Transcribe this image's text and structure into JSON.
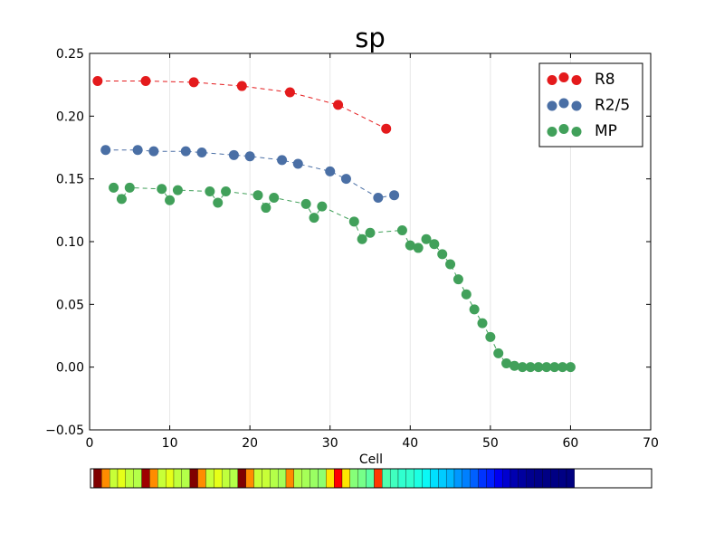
{
  "chart_data": {
    "type": "scatter",
    "title": "sp",
    "xlabel": "Cell",
    "ylabel": "",
    "xlim": [
      0,
      70
    ],
    "ylim": [
      -0.05,
      0.25
    ],
    "x_ticks": [
      "0",
      "10",
      "20",
      "30",
      "40",
      "50",
      "60",
      "70"
    ],
    "y_ticks": [
      "−0.05",
      "0.00",
      "0.05",
      "0.10",
      "0.15",
      "0.20",
      "0.25"
    ],
    "grid": "vertical",
    "legend_position": "top-right",
    "series": [
      {
        "name": "R8",
        "color": "#e41a1c",
        "x": [
          1,
          7,
          13,
          19,
          25,
          31,
          37
        ],
        "y": [
          0.228,
          0.228,
          0.227,
          0.224,
          0.219,
          0.209,
          0.19
        ]
      },
      {
        "name": "R2/5",
        "color": "#4a6fa5",
        "x": [
          2,
          6,
          8,
          12,
          14,
          18,
          20,
          24,
          26,
          30,
          32,
          36,
          38
        ],
        "y": [
          0.173,
          0.173,
          0.172,
          0.172,
          0.171,
          0.169,
          0.168,
          0.165,
          0.162,
          0.156,
          0.15,
          0.135,
          0.137
        ]
      },
      {
        "name": "MP",
        "color": "#41a05a",
        "x": [
          3,
          4,
          5,
          9,
          10,
          11,
          15,
          16,
          17,
          21,
          22,
          23,
          27,
          28,
          29,
          33,
          34,
          35,
          39,
          40,
          41,
          42,
          43,
          44,
          45,
          46,
          47,
          48,
          49,
          50,
          51,
          52,
          53,
          54,
          55,
          56,
          57,
          58,
          59,
          60
        ],
        "y": [
          0.143,
          0.134,
          0.143,
          0.142,
          0.133,
          0.141,
          0.14,
          0.131,
          0.14,
          0.137,
          0.127,
          0.135,
          0.13,
          0.119,
          0.128,
          0.116,
          0.102,
          0.107,
          0.109,
          0.097,
          0.095,
          0.102,
          0.098,
          0.09,
          0.082,
          0.07,
          0.058,
          0.046,
          0.035,
          0.024,
          0.011,
          0.003,
          0.001,
          0.0,
          0.0,
          0.0,
          0.0,
          0.0,
          0.0,
          0.0
        ]
      }
    ],
    "colorbar": {
      "cells": 60,
      "colors": [
        "#800000",
        "#ff8c00",
        "#c8ff37",
        "#e6ff18",
        "#c0ff3d",
        "#b4ff49",
        "#9e0000",
        "#ff8c00",
        "#c8ff37",
        "#e6ff18",
        "#c0ff3d",
        "#b4ff49",
        "#800000",
        "#ff8c00",
        "#c8ff37",
        "#e6ff18",
        "#c0ff3d",
        "#b4ff49",
        "#800000",
        "#ff8c00",
        "#c8ff37",
        "#c8ff37",
        "#b4ff49",
        "#a6ff57",
        "#ff8c00",
        "#b4ff49",
        "#a6ff57",
        "#9aff63",
        "#8eff6f",
        "#ffe600",
        "#ff0000",
        "#ffe600",
        "#86ff79",
        "#76ff89",
        "#5cffa3",
        "#ff3800",
        "#50ffaf",
        "#40ffbf",
        "#30ffcf",
        "#30ffcf",
        "#1cffe3",
        "#0af8f6",
        "#00e0ff",
        "#00ccff",
        "#00b8ff",
        "#0098ff",
        "#0080ff",
        "#0060ff",
        "#0034ff",
        "#0020ff",
        "#0000f1",
        "#0000d0",
        "#0000b0",
        "#00009f",
        "#00008f",
        "#000088",
        "#000084",
        "#000084",
        "#000084",
        "#000080"
      ]
    }
  }
}
